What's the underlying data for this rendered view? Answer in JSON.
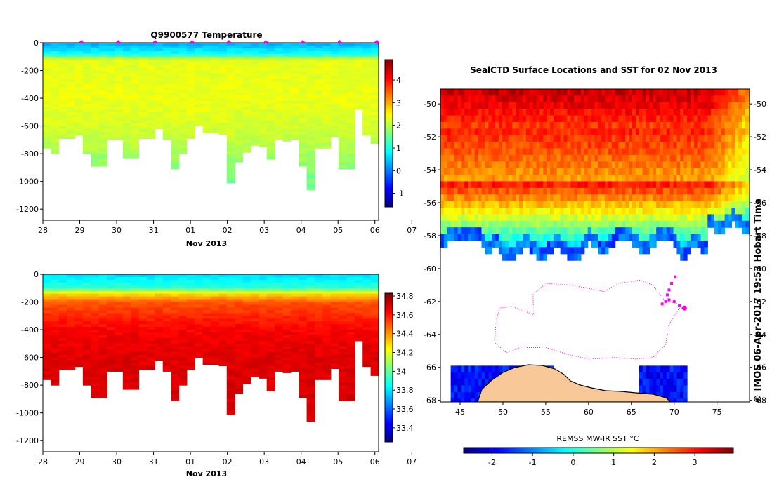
{
  "colors": {
    "jet": [
      "#00007f",
      "#0000ff",
      "#007fff",
      "#00ffff",
      "#7fff7f",
      "#ffff00",
      "#ff7f00",
      "#ff0000",
      "#7f0000"
    ],
    "land": "#f8c898",
    "track": "#ff00ff",
    "frame": "#000000"
  },
  "chart_data": [
    {
      "type": "heatmap",
      "title": "Q9900577  Temperature",
      "xlabel": "Nov 2013",
      "xticks": [
        "28",
        "29",
        "30",
        "31",
        "01",
        "02",
        "03",
        "04",
        "05",
        "06",
        "07"
      ],
      "yticks": [
        "0",
        "-200",
        "-400",
        "-600",
        "-800",
        "-1000",
        "-1200"
      ],
      "ylim": [
        -1280,
        0
      ],
      "xlim": [
        0,
        9.1
      ],
      "colorbar": {
        "min": -1.6,
        "max": 4.9,
        "ticks": [
          "4",
          "3",
          "2",
          "1",
          "0",
          "-1"
        ]
      },
      "max_depths": [
        760,
        800,
        690,
        690,
        665,
        800,
        890,
        890,
        700,
        700,
        830,
        830,
        690,
        690,
        620,
        700,
        910,
        800,
        690,
        600,
        650,
        650,
        660,
        1010,
        860,
        790,
        740,
        750,
        840,
        700,
        710,
        700,
        890,
        1060,
        760,
        760,
        680,
        910,
        910,
        480,
        665,
        730
      ],
      "profile": [
        [
          0,
          0.3
        ],
        [
          80,
          0.9
        ],
        [
          120,
          2.3
        ],
        [
          200,
          2.3
        ],
        [
          400,
          2.35
        ],
        [
          600,
          2.2
        ],
        [
          800,
          1.9
        ],
        [
          1000,
          1.6
        ],
        [
          1100,
          1.5
        ]
      ]
    },
    {
      "type": "heatmap",
      "title": "",
      "xlabel": "Nov 2013",
      "xticks": [
        "28",
        "29",
        "30",
        "31",
        "01",
        "02",
        "03",
        "04",
        "05",
        "06",
        "07"
      ],
      "yticks": [
        "0",
        "-200",
        "-400",
        "-600",
        "-800",
        "-1000",
        "-1200"
      ],
      "ylim": [
        -1280,
        0
      ],
      "xlim": [
        0,
        9.1
      ],
      "colorbar": {
        "min": 33.25,
        "max": 34.83,
        "ticks": [
          "34.8",
          "34.6",
          "34.4",
          "34.2",
          "34",
          "33.8",
          "33.6",
          "33.4"
        ]
      },
      "max_depths": [
        760,
        800,
        690,
        690,
        665,
        800,
        890,
        890,
        700,
        700,
        830,
        830,
        690,
        690,
        620,
        700,
        910,
        800,
        690,
        600,
        650,
        650,
        660,
        1010,
        860,
        790,
        740,
        750,
        840,
        700,
        710,
        700,
        890,
        1060,
        760,
        760,
        680,
        910,
        910,
        480,
        665,
        730
      ],
      "profile": [
        [
          0,
          33.78
        ],
        [
          100,
          33.92
        ],
        [
          140,
          34.28
        ],
        [
          200,
          34.5
        ],
        [
          400,
          34.64
        ],
        [
          600,
          34.68
        ],
        [
          900,
          34.7
        ],
        [
          1100,
          34.71
        ]
      ]
    },
    {
      "type": "scatter",
      "title": "SealCTD Surface Locations and SST for 02 Nov 2013",
      "xticks": [
        "45",
        "50",
        "55",
        "60",
        "65",
        "70",
        "75"
      ],
      "yticks": [
        "-50",
        "-52",
        "-54",
        "-56",
        "-58",
        "-60",
        "-62",
        "-64",
        "-66",
        "-68"
      ],
      "xlim": [
        42.7,
        78.8
      ],
      "ylim": [
        -68.1,
        -49.1
      ],
      "colorbar": {
        "label": "REMSS MW-IR SST °C",
        "min": -2.7,
        "max": 3.95,
        "ticks": [
          "-2",
          "-1",
          "0",
          "1",
          "2",
          "3"
        ]
      },
      "surface_locations": [
        [
          71.2,
          -62.4
        ],
        [
          70.6,
          -62.25
        ],
        [
          70.0,
          -62.0
        ],
        [
          69.4,
          -61.9
        ],
        [
          69.0,
          -62.0
        ],
        [
          68.6,
          -62.15
        ],
        [
          69.2,
          -61.6
        ],
        [
          69.4,
          -61.3
        ],
        [
          69.7,
          -60.9
        ],
        [
          70.1,
          -60.5
        ]
      ],
      "track": [
        [
          71.2,
          -62.4
        ],
        [
          70.2,
          -62.1
        ],
        [
          68.9,
          -61.95
        ],
        [
          67.5,
          -61.0
        ],
        [
          66.0,
          -60.7
        ],
        [
          63.5,
          -60.9
        ],
        [
          61.8,
          -61.4
        ],
        [
          60.0,
          -61.2
        ],
        [
          57.8,
          -61.0
        ],
        [
          55.0,
          -60.9
        ],
        [
          53.5,
          -61.6
        ],
        [
          53.6,
          -62.8
        ],
        [
          51.0,
          -62.3
        ],
        [
          49.6,
          -62.4
        ],
        [
          49.2,
          -63.2
        ],
        [
          49.0,
          -64.5
        ],
        [
          50.4,
          -65.1
        ],
        [
          52.0,
          -64.8
        ],
        [
          55.0,
          -64.8
        ],
        [
          57.5,
          -65.2
        ],
        [
          60.0,
          -65.5
        ],
        [
          63.0,
          -65.4
        ],
        [
          65.5,
          -65.5
        ],
        [
          67.5,
          -65.4
        ],
        [
          69.0,
          -64.6
        ],
        [
          69.4,
          -63.4
        ],
        [
          70.6,
          -62.4
        ],
        [
          71.2,
          -62.4
        ]
      ]
    }
  ],
  "watermark": "© IMOS 06-Apr-2017 19:53 Hobart Time"
}
